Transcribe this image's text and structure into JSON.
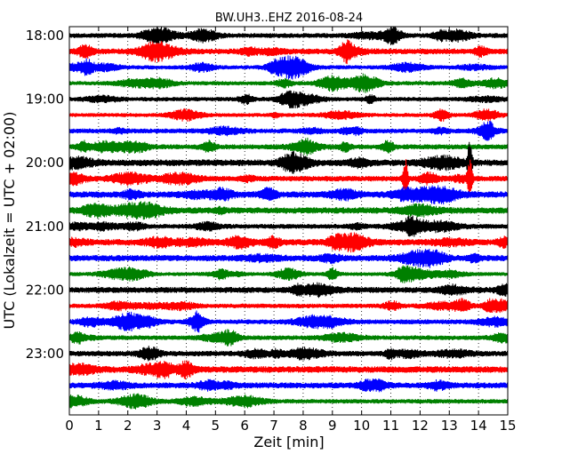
{
  "chart_data": {
    "type": "line",
    "title": "BW.UH3..EHZ 2016-08-24",
    "xlabel": "Zeit  [min]",
    "ylabel": "UTC (Lokalzeit = UTC + 02:00)",
    "xlim": [
      0,
      15
    ],
    "x_ticks": [
      "0",
      "1",
      "2",
      "3",
      "4",
      "5",
      "6",
      "7",
      "8",
      "9",
      "10",
      "11",
      "12",
      "13",
      "14",
      "15"
    ],
    "y_tick_labels": [
      "18:00",
      "19:00",
      "20:00",
      "21:00",
      "22:00",
      "23:00"
    ],
    "grid": "vertical dotted",
    "trace_colors": [
      "#000000",
      "#ff0000",
      "#0000ff",
      "#008000"
    ],
    "series": [
      {
        "start": "18:00"
      },
      {
        "start": "18:15"
      },
      {
        "start": "18:30"
      },
      {
        "start": "18:45"
      },
      {
        "start": "19:00"
      },
      {
        "start": "19:15"
      },
      {
        "start": "19:30"
      },
      {
        "start": "19:45"
      },
      {
        "start": "20:00"
      },
      {
        "start": "20:15"
      },
      {
        "start": "20:30"
      },
      {
        "start": "20:45"
      },
      {
        "start": "21:00"
      },
      {
        "start": "21:15"
      },
      {
        "start": "21:30"
      },
      {
        "start": "21:45"
      },
      {
        "start": "22:00"
      },
      {
        "start": "22:15"
      },
      {
        "start": "22:30"
      },
      {
        "start": "22:45"
      },
      {
        "start": "23:00"
      },
      {
        "start": "23:15"
      },
      {
        "start": "23:30"
      },
      {
        "start": "23:45"
      }
    ],
    "events": [
      {
        "trace": "20:15",
        "minute": 11.5
      },
      {
        "trace": "20:00",
        "minute": 13.7
      },
      {
        "trace": "20:15",
        "minute": 13.7
      }
    ]
  }
}
